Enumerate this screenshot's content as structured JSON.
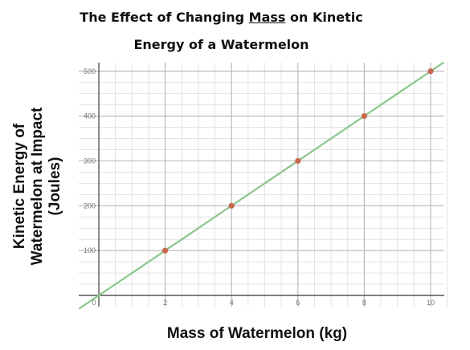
{
  "chart_data": {
    "type": "line",
    "title_parts": {
      "before": "The Effect of Changing ",
      "underlined": "Mass",
      "after": " on Kinetic"
    },
    "title_line2": "Energy of a Watermelon",
    "xlabel": "Mass of Watermelon (kg)",
    "ylabel_lines": [
      "Kinetic Energy of",
      "Watermelon at Impact",
      "(Joules)"
    ],
    "xlim": [
      -0.6,
      10.4
    ],
    "ylim": [
      -25,
      520
    ],
    "x_ticks": [
      0,
      2,
      4,
      6,
      8,
      10
    ],
    "y_ticks": [
      100,
      200,
      300,
      400,
      500
    ],
    "x_tick_labels": [
      "0",
      "2",
      "4",
      "6",
      "8",
      "10"
    ],
    "y_tick_labels": [
      "100",
      "200",
      "300",
      "400",
      "500"
    ],
    "series": [
      {
        "x": [
          2,
          4,
          6,
          8,
          10
        ],
        "y": [
          100,
          200,
          300,
          400,
          500
        ],
        "line_slope": 50,
        "line_intercept": 0
      }
    ],
    "grid": true,
    "line_color": "#8cc68c",
    "point_color": "#c8684e"
  }
}
